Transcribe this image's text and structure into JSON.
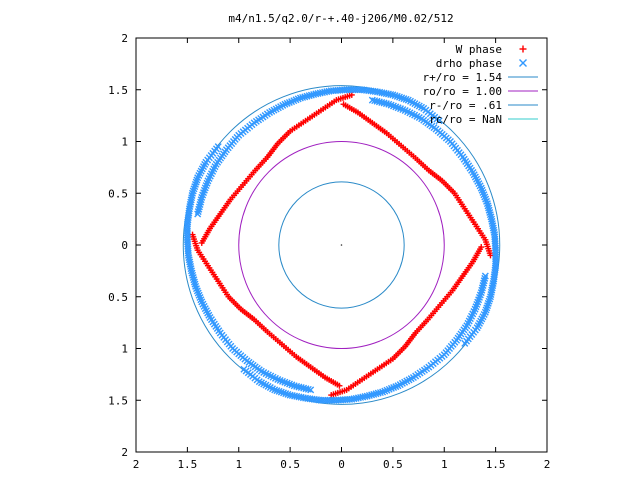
{
  "chart_data": {
    "type": "scatter",
    "title": "m4/n1.5/q2.0/r-+.40-j206/M0.02/512",
    "xlabel": "",
    "ylabel": "",
    "xlim": [
      -2,
      2
    ],
    "ylim": [
      -2,
      2
    ],
    "x_ticks": [
      -2,
      -1.5,
      -1,
      -0.5,
      0,
      0.5,
      1,
      1.5,
      2
    ],
    "y_ticks": [
      -2,
      -1.5,
      -1,
      -0.5,
      0,
      0.5,
      1,
      1.5,
      2
    ],
    "x_tick_labels": [
      "2",
      "1.5",
      "1",
      "0.5",
      "0",
      "0.5",
      "1",
      "1.5",
      "2"
    ],
    "y_tick_labels": [
      "2",
      "1.5",
      "1",
      "0.5",
      "0",
      "0.5",
      "1",
      "1.5",
      "2"
    ],
    "grid": false,
    "legend_position": "top-right",
    "series": [
      {
        "name": "W phase",
        "kind": "points",
        "marker": "plus",
        "color": "#ff0000",
        "arms": [
          [
            [
              0.1,
              1.45
            ],
            [
              -0.05,
              1.4
            ],
            [
              -0.2,
              1.3
            ],
            [
              -0.35,
              1.2
            ],
            [
              -0.5,
              1.1
            ],
            [
              -0.62,
              0.98
            ],
            [
              -0.72,
              0.85
            ],
            [
              -0.84,
              0.72
            ],
            [
              -0.96,
              0.58
            ],
            [
              -1.08,
              0.44
            ],
            [
              -1.18,
              0.3
            ],
            [
              -1.28,
              0.16
            ],
            [
              -1.36,
              0.02
            ]
          ],
          [
            [
              1.45,
              -0.1
            ],
            [
              1.4,
              0.05
            ],
            [
              1.3,
              0.2
            ],
            [
              1.2,
              0.35
            ],
            [
              1.1,
              0.5
            ],
            [
              0.98,
              0.62
            ],
            [
              0.85,
              0.72
            ],
            [
              0.72,
              0.84
            ],
            [
              0.58,
              0.96
            ],
            [
              0.44,
              1.08
            ],
            [
              0.3,
              1.18
            ],
            [
              0.16,
              1.28
            ],
            [
              0.02,
              1.36
            ]
          ],
          [
            [
              -0.1,
              -1.45
            ],
            [
              0.05,
              -1.4
            ],
            [
              0.2,
              -1.3
            ],
            [
              0.35,
              -1.2
            ],
            [
              0.5,
              -1.1
            ],
            [
              0.62,
              -0.98
            ],
            [
              0.72,
              -0.85
            ],
            [
              0.84,
              -0.72
            ],
            [
              0.96,
              -0.58
            ],
            [
              1.08,
              -0.44
            ],
            [
              1.18,
              -0.3
            ],
            [
              1.28,
              -0.16
            ],
            [
              1.36,
              -0.02
            ]
          ],
          [
            [
              -1.45,
              0.1
            ],
            [
              -1.4,
              -0.05
            ],
            [
              -1.3,
              -0.2
            ],
            [
              -1.2,
              -0.35
            ],
            [
              -1.1,
              -0.5
            ],
            [
              -0.98,
              -0.62
            ],
            [
              -0.85,
              -0.72
            ],
            [
              -0.72,
              -0.84
            ],
            [
              -0.58,
              -0.96
            ],
            [
              -0.44,
              -1.08
            ],
            [
              -0.3,
              -1.18
            ],
            [
              -0.16,
              -1.28
            ],
            [
              -0.02,
              -1.36
            ]
          ]
        ]
      },
      {
        "name": "drho phase",
        "kind": "points",
        "marker": "cross",
        "color": "#3399ff",
        "arms": [
          [
            [
              0.95,
              1.2
            ],
            [
              0.8,
              1.32
            ],
            [
              0.65,
              1.4
            ],
            [
              0.5,
              1.45
            ],
            [
              0.35,
              1.48
            ],
            [
              0.2,
              1.5
            ],
            [
              0.05,
              1.5
            ],
            [
              -0.1,
              1.49
            ],
            [
              -0.25,
              1.46
            ],
            [
              -0.4,
              1.42
            ],
            [
              -0.55,
              1.36
            ],
            [
              -0.7,
              1.28
            ],
            [
              -0.85,
              1.18
            ],
            [
              -1.0,
              1.06
            ],
            [
              -1.12,
              0.92
            ],
            [
              -1.22,
              0.78
            ],
            [
              -1.3,
              0.62
            ],
            [
              -1.36,
              0.46
            ],
            [
              -1.4,
              0.3
            ]
          ],
          [
            [
              1.2,
              -0.95
            ],
            [
              1.32,
              -0.8
            ],
            [
              1.4,
              -0.65
            ],
            [
              1.45,
              -0.5
            ],
            [
              1.48,
              -0.35
            ],
            [
              1.5,
              -0.2
            ],
            [
              1.5,
              -0.05
            ],
            [
              1.49,
              0.1
            ],
            [
              1.46,
              0.25
            ],
            [
              1.42,
              0.4
            ],
            [
              1.36,
              0.55
            ],
            [
              1.28,
              0.7
            ],
            [
              1.18,
              0.85
            ],
            [
              1.06,
              1.0
            ],
            [
              0.92,
              1.12
            ],
            [
              0.78,
              1.22
            ],
            [
              0.62,
              1.3
            ],
            [
              0.46,
              1.36
            ],
            [
              0.3,
              1.4
            ]
          ],
          [
            [
              -0.95,
              -1.2
            ],
            [
              -0.8,
              -1.32
            ],
            [
              -0.65,
              -1.4
            ],
            [
              -0.5,
              -1.45
            ],
            [
              -0.35,
              -1.48
            ],
            [
              -0.2,
              -1.5
            ],
            [
              -0.05,
              -1.5
            ],
            [
              0.1,
              -1.49
            ],
            [
              0.25,
              -1.46
            ],
            [
              0.4,
              -1.42
            ],
            [
              0.55,
              -1.36
            ],
            [
              0.7,
              -1.28
            ],
            [
              0.85,
              -1.18
            ],
            [
              1.0,
              -1.06
            ],
            [
              1.12,
              -0.92
            ],
            [
              1.22,
              -0.78
            ],
            [
              1.3,
              -0.62
            ],
            [
              1.36,
              -0.46
            ],
            [
              1.4,
              -0.3
            ]
          ],
          [
            [
              -1.2,
              0.95
            ],
            [
              -1.32,
              0.8
            ],
            [
              -1.4,
              0.65
            ],
            [
              -1.45,
              0.5
            ],
            [
              -1.48,
              0.35
            ],
            [
              -1.5,
              0.2
            ],
            [
              -1.5,
              0.05
            ],
            [
              -1.49,
              -0.1
            ],
            [
              -1.46,
              -0.25
            ],
            [
              -1.42,
              -0.4
            ],
            [
              -1.36,
              -0.55
            ],
            [
              -1.28,
              -0.7
            ],
            [
              -1.18,
              -0.85
            ],
            [
              -1.06,
              -1.0
            ],
            [
              -0.92,
              -1.12
            ],
            [
              -0.78,
              -1.22
            ],
            [
              -0.62,
              -1.3
            ],
            [
              -0.46,
              -1.36
            ],
            [
              -0.3,
              -1.4
            ]
          ]
        ]
      },
      {
        "name": "r+/ro = 1.54",
        "kind": "circle",
        "radius": 1.54,
        "color": "#2a8ac8"
      },
      {
        "name": "ro/ro = 1.00",
        "kind": "circle",
        "radius": 1.0,
        "color": "#a020c0"
      },
      {
        "name": "r-/ro = .61",
        "kind": "circle",
        "radius": 0.61,
        "color": "#2a8ac8"
      },
      {
        "name": "rc/ro = NaN",
        "kind": "circle",
        "radius": null,
        "color": "#33cccc"
      }
    ]
  }
}
